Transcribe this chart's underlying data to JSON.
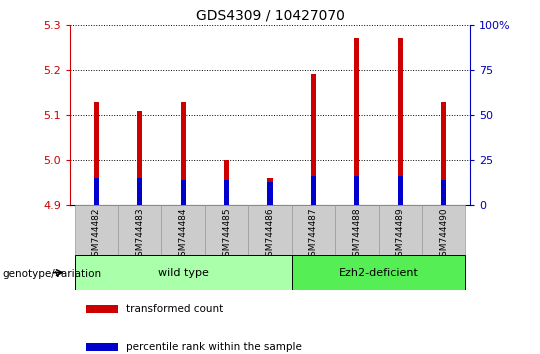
{
  "title": "GDS4309 / 10427070",
  "samples": [
    "GSM744482",
    "GSM744483",
    "GSM744484",
    "GSM744485",
    "GSM744486",
    "GSM744487",
    "GSM744488",
    "GSM744489",
    "GSM744490"
  ],
  "transformed_counts": [
    5.13,
    5.11,
    5.13,
    5.0,
    4.96,
    5.19,
    5.27,
    5.27,
    5.13
  ],
  "percentile_ranks": [
    15,
    15,
    14,
    14,
    13,
    16,
    16,
    16,
    14
  ],
  "ylim_left": [
    4.9,
    5.3
  ],
  "ylim_right": [
    0,
    100
  ],
  "yticks_left": [
    4.9,
    5.0,
    5.1,
    5.2,
    5.3
  ],
  "yticks_right": [
    0,
    25,
    50,
    75,
    100
  ],
  "bar_base": 4.9,
  "percentile_scale": 0.4,
  "groups": [
    {
      "label": "wild type",
      "indices": [
        0,
        1,
        2,
        3,
        4
      ],
      "color": "#AAFFAA"
    },
    {
      "label": "Ezh2-deficient",
      "indices": [
        5,
        6,
        7,
        8
      ],
      "color": "#55EE55"
    }
  ],
  "group_label": "genotype/variation",
  "bar_color": "#CC0000",
  "percentile_color": "#0000CC",
  "legend_items": [
    {
      "label": "transformed count",
      "color": "#CC0000"
    },
    {
      "label": "percentile rank within the sample",
      "color": "#0000CC"
    }
  ],
  "tick_color_left": "#CC0000",
  "tick_color_right": "#0000BB",
  "background_color": "#FFFFFF",
  "bar_width": 0.12,
  "grid_color": "#000000",
  "xticklabel_bg": "#CCCCCC",
  "right_axis_label_100": "100%"
}
